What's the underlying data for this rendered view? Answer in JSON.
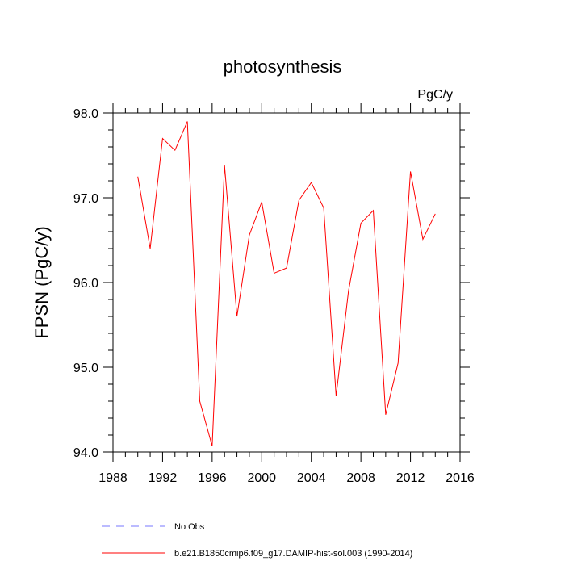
{
  "chart_data": {
    "type": "line",
    "title": "photosynthesis",
    "units_label": "PgC/y",
    "xlabel": "",
    "ylabel": "FPSN  (PgC/y)",
    "xlim": [
      1988,
      2016
    ],
    "ylim": [
      94.0,
      98.0
    ],
    "x_ticks": [
      "1988",
      "1992",
      "1996",
      "2000",
      "2004",
      "2008",
      "2012",
      "2016"
    ],
    "y_ticks": [
      "94.0",
      "95.0",
      "96.0",
      "97.0",
      "98.0"
    ],
    "x_tick_values": [
      1988,
      1992,
      1996,
      2000,
      2004,
      2008,
      2012,
      2016
    ],
    "y_tick_values": [
      94.0,
      95.0,
      96.0,
      97.0,
      98.0
    ],
    "grid": false,
    "legend_position": "bottom",
    "series": [
      {
        "name": "b.e21.B1850cmip6.f09_g17.DAMIP-hist-sol.003 (1990-2014)",
        "color": "#ff0000",
        "style": "solid",
        "x": [
          1990,
          1991,
          1992,
          1993,
          1994,
          1995,
          1996,
          1997,
          1998,
          1999,
          2000,
          2001,
          2002,
          2003,
          2004,
          2005,
          2006,
          2007,
          2008,
          2009,
          2010,
          2011,
          2012,
          2013,
          2014
        ],
        "y": [
          97.25,
          96.4,
          97.7,
          97.56,
          97.9,
          94.6,
          94.07,
          97.38,
          95.6,
          96.56,
          96.95,
          96.11,
          96.17,
          96.97,
          97.18,
          96.88,
          94.66,
          95.9,
          96.7,
          96.85,
          94.44,
          95.05,
          97.31,
          96.51,
          96.81
        ]
      }
    ],
    "legend": [
      {
        "label": "No Obs",
        "color": "#7777ff",
        "style": "dashed"
      },
      {
        "label": "b.e21.B1850cmip6.f09_g17.DAMIP-hist-sol.003 (1990-2014)",
        "color": "#ff0000",
        "style": "solid"
      }
    ]
  }
}
